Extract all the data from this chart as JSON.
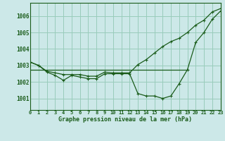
{
  "background_color": "#cce8e8",
  "grid_color": "#99ccbb",
  "line_color": "#1a5c1a",
  "title": "Graphe pression niveau de la mer (hPa)",
  "ylabel_ticks": [
    1001,
    1002,
    1003,
    1004,
    1005,
    1006
  ],
  "x_ticks": [
    0,
    1,
    2,
    3,
    4,
    5,
    6,
    7,
    8,
    9,
    10,
    11,
    12,
    13,
    14,
    15,
    16,
    17,
    18,
    19,
    20,
    21,
    22,
    23
  ],
  "ylim": [
    1000.3,
    1006.8
  ],
  "xlim": [
    0,
    23
  ],
  "series1_x": [
    0,
    1,
    2,
    3,
    4,
    5,
    6,
    7,
    8,
    9,
    10,
    11,
    12,
    13,
    14,
    15,
    16,
    17,
    18,
    19,
    20,
    21,
    22,
    23
  ],
  "series1_y": [
    1003.2,
    1003.0,
    1002.6,
    1002.4,
    1002.1,
    1002.4,
    1002.3,
    1002.2,
    1002.2,
    1002.5,
    1002.5,
    1002.5,
    1002.5,
    1001.3,
    1001.15,
    1001.15,
    1001.0,
    1001.15,
    1001.9,
    1002.75,
    1004.4,
    1005.0,
    1005.8,
    1006.3
  ],
  "series2_x": [
    0,
    1,
    2,
    3,
    4,
    5,
    6,
    7,
    8,
    9,
    10,
    11,
    12,
    13,
    14,
    15,
    16,
    17,
    18,
    19,
    20,
    21,
    22,
    23
  ],
  "series2_y": [
    1003.2,
    1003.0,
    1002.65,
    1002.55,
    1002.45,
    1002.45,
    1002.45,
    1002.35,
    1002.35,
    1002.6,
    1002.55,
    1002.55,
    1002.55,
    1003.05,
    1003.35,
    1003.75,
    1004.15,
    1004.45,
    1004.65,
    1005.0,
    1005.45,
    1005.75,
    1006.25,
    1006.45
  ],
  "series3_x": [
    0,
    19
  ],
  "series3_y": [
    1002.75,
    1002.75
  ]
}
